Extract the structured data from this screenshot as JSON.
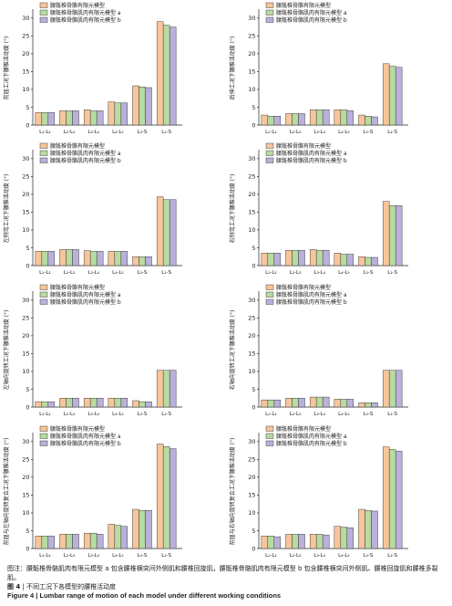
{
  "colors": {
    "series": [
      "#f6c59a",
      "#b7dba1",
      "#b9b1da"
    ],
    "bar_stroke": "#333333",
    "axis": "#222222"
  },
  "figure": {
    "caption": {
      "note": "图注：腰骶椎骨骼肌肉有限元模型 a 包含腰椎横突间外侧肌和腰椎回旋肌，腰骶椎骨骼肌肉有限元模型 b 包含腰椎横突间外侧肌、腰椎回旋肌和腰椎多裂肌。",
      "fig_label_cn": "图 4",
      "sep": "|",
      "title_cn": "不同工况下各模型的腰椎活动度",
      "fig_label_en": "Figure 4",
      "title_en": "Lumbar range of motion of each model under different working conditions"
    }
  },
  "chart_data": [
    {
      "type": "bar",
      "ylabel": "前屈工况下腰椎活动度 (°)",
      "ylim": [
        0,
        32
      ],
      "yticks": [
        0,
        5,
        10,
        15,
        20,
        25,
        30
      ],
      "grid": false,
      "legend": "top-left",
      "categories": [
        "L₁-L₂",
        "L₂-L₃",
        "L₃-L₄",
        "L₄-L₅",
        "L₅-S",
        "L₁-S"
      ],
      "series": [
        {
          "name": "腰骶椎骨骼有限元模型",
          "values": [
            3.5,
            4.0,
            4.3,
            6.5,
            11.0,
            29.0
          ]
        },
        {
          "name": "腰骶椎骨骼肌肉有限元模型 a",
          "values": [
            3.5,
            4.0,
            4.0,
            6.2,
            10.7,
            28.0
          ]
        },
        {
          "name": "腰骶椎骨骼肌肉有限元模型 b",
          "values": [
            3.5,
            4.0,
            4.0,
            6.2,
            10.5,
            27.5
          ]
        }
      ]
    },
    {
      "type": "bar",
      "ylabel": "后伸工况下腰椎活动度 (°)",
      "ylim": [
        0,
        32
      ],
      "yticks": [
        0,
        5,
        10,
        15,
        20,
        25,
        30
      ],
      "grid": false,
      "legend": "top-left",
      "categories": [
        "L₁-L₂",
        "L₂-L₃",
        "L₃-L₄",
        "L₄-L₅",
        "L₅-S",
        "L₁-S"
      ],
      "series": [
        {
          "name": "腰骶椎骨骼有限元模型",
          "values": [
            2.8,
            3.2,
            4.3,
            4.3,
            2.8,
            17.2
          ]
        },
        {
          "name": "腰骶椎骨骼肌肉有限元模型 a",
          "values": [
            2.5,
            3.2,
            4.3,
            4.3,
            2.5,
            16.5
          ]
        },
        {
          "name": "腰骶椎骨骼肌肉有限元模型 b",
          "values": [
            2.5,
            3.2,
            4.3,
            4.0,
            2.3,
            16.2
          ]
        }
      ]
    },
    {
      "type": "bar",
      "ylabel": "左侧弯工况下腰椎活动度 (°)",
      "ylim": [
        0,
        32
      ],
      "yticks": [
        0,
        5,
        10,
        15,
        20,
        25,
        30
      ],
      "grid": false,
      "legend": "top-left",
      "categories": [
        "L₁-L₂",
        "L₂-L₃",
        "L₃-L₄",
        "L₄-L₅",
        "L₅-S",
        "L₁-S"
      ],
      "series": [
        {
          "name": "腰骶椎骨骼有限元模型",
          "values": [
            4.0,
            4.5,
            4.2,
            4.0,
            2.5,
            19.3
          ]
        },
        {
          "name": "腰骶椎骨骼肌肉有限元模型 a",
          "values": [
            4.0,
            4.5,
            4.0,
            4.0,
            2.5,
            18.5
          ]
        },
        {
          "name": "腰骶椎骨骼肌肉有限元模型 b",
          "values": [
            4.0,
            4.5,
            4.0,
            4.0,
            2.5,
            18.5
          ]
        }
      ]
    },
    {
      "type": "bar",
      "ylabel": "右侧弯工况下腰椎活动度 (°)",
      "ylim": [
        0,
        32
      ],
      "yticks": [
        0,
        5,
        10,
        15,
        20,
        25,
        30
      ],
      "grid": false,
      "legend": "top-left",
      "categories": [
        "L₁-L₂",
        "L₂-L₃",
        "L₃-L₄",
        "L₄-L₅",
        "L₅-S",
        "L₁-S"
      ],
      "series": [
        {
          "name": "腰骶椎骨骼有限元模型",
          "values": [
            3.5,
            4.3,
            4.5,
            3.5,
            2.5,
            18.0
          ]
        },
        {
          "name": "腰骶椎骨骼肌肉有限元模型 a",
          "values": [
            3.5,
            4.3,
            4.3,
            3.2,
            2.3,
            16.8
          ]
        },
        {
          "name": "腰骶椎骨骼肌肉有限元模型 b",
          "values": [
            3.5,
            4.3,
            4.3,
            3.2,
            2.3,
            16.8
          ]
        }
      ]
    },
    {
      "type": "bar",
      "ylabel": "左轴向旋转工况下腰椎活动度 (°)",
      "ylim": [
        0,
        32
      ],
      "yticks": [
        0,
        5,
        10,
        15,
        20,
        25,
        30
      ],
      "grid": false,
      "legend": "top-left",
      "categories": [
        "L₁-L₂",
        "L₂-L₃",
        "L₃-L₄",
        "L₄-L₅",
        "L₅-S",
        "L₁-S"
      ],
      "series": [
        {
          "name": "腰骶椎骨骼有限元模型",
          "values": [
            1.5,
            2.5,
            2.5,
            2.5,
            1.8,
            10.3
          ]
        },
        {
          "name": "腰骶椎骨骼肌肉有限元模型 a",
          "values": [
            1.5,
            2.5,
            2.5,
            2.5,
            1.5,
            10.3
          ]
        },
        {
          "name": "腰骶椎骨骼肌肉有限元模型 b",
          "values": [
            1.5,
            2.5,
            2.5,
            2.5,
            1.5,
            10.3
          ]
        }
      ]
    },
    {
      "type": "bar",
      "ylabel": "右轴向旋转工况下腰椎活动度 (°)",
      "ylim": [
        0,
        32
      ],
      "yticks": [
        0,
        5,
        10,
        15,
        20,
        25,
        30
      ],
      "grid": false,
      "legend": "top-left",
      "categories": [
        "L₁-L₂",
        "L₂-L₃",
        "L₃-L₄",
        "L₄-L₅",
        "L₅-S",
        "L₁-S"
      ],
      "series": [
        {
          "name": "腰骶椎骨骼有限元模型",
          "values": [
            2.0,
            2.5,
            2.8,
            2.2,
            1.2,
            10.3
          ]
        },
        {
          "name": "腰骶椎骨骼肌肉有限元模型 a",
          "values": [
            2.0,
            2.5,
            2.8,
            2.2,
            1.2,
            10.3
          ]
        },
        {
          "name": "腰骶椎骨骼肌肉有限元模型 b",
          "values": [
            2.0,
            2.5,
            2.8,
            2.2,
            1.2,
            10.3
          ]
        }
      ]
    },
    {
      "type": "bar",
      "ylabel": "前屈与左轴向旋转复合工况下腰椎活动度 (°)",
      "ylim": [
        0,
        32
      ],
      "yticks": [
        0,
        5,
        10,
        15,
        20,
        25,
        30
      ],
      "grid": false,
      "legend": "top-left",
      "categories": [
        "L₁-L₂",
        "L₂-L₃",
        "L₃-L₄",
        "L₄-L₅",
        "L₅-S",
        "L₁-S"
      ],
      "series": [
        {
          "name": "腰骶椎骨骼有限元模型",
          "values": [
            3.5,
            4.0,
            4.3,
            6.8,
            11.0,
            29.3
          ]
        },
        {
          "name": "腰骶椎骨骼肌肉有限元模型 a",
          "values": [
            3.5,
            4.0,
            4.3,
            6.5,
            10.7,
            28.6
          ]
        },
        {
          "name": "腰骶椎骨骼肌肉有限元模型 b",
          "values": [
            3.5,
            4.0,
            4.0,
            6.2,
            10.7,
            28.0
          ]
        }
      ]
    },
    {
      "type": "bar",
      "ylabel": "前屈与右轴向旋转复合工况下腰椎活动度 (°)",
      "ylim": [
        0,
        32
      ],
      "yticks": [
        0,
        5,
        10,
        15,
        20,
        25,
        30
      ],
      "grid": false,
      "legend": "top-left",
      "categories": [
        "L₁-L₂",
        "L₂-L₃",
        "L₃-L₄",
        "L₄-L₅",
        "L₅-S",
        "L₁-S"
      ],
      "series": [
        {
          "name": "腰骶椎骨骼有限元模型",
          "values": [
            3.5,
            4.0,
            4.0,
            6.2,
            11.0,
            28.5
          ]
        },
        {
          "name": "腰骶椎骨骼肌肉有限元模型 a",
          "values": [
            3.5,
            4.0,
            4.0,
            6.0,
            10.7,
            27.8
          ]
        },
        {
          "name": "腰骶椎骨骼肌肉有限元模型 b",
          "values": [
            3.3,
            4.0,
            3.8,
            5.8,
            10.5,
            27.3
          ]
        }
      ]
    }
  ]
}
